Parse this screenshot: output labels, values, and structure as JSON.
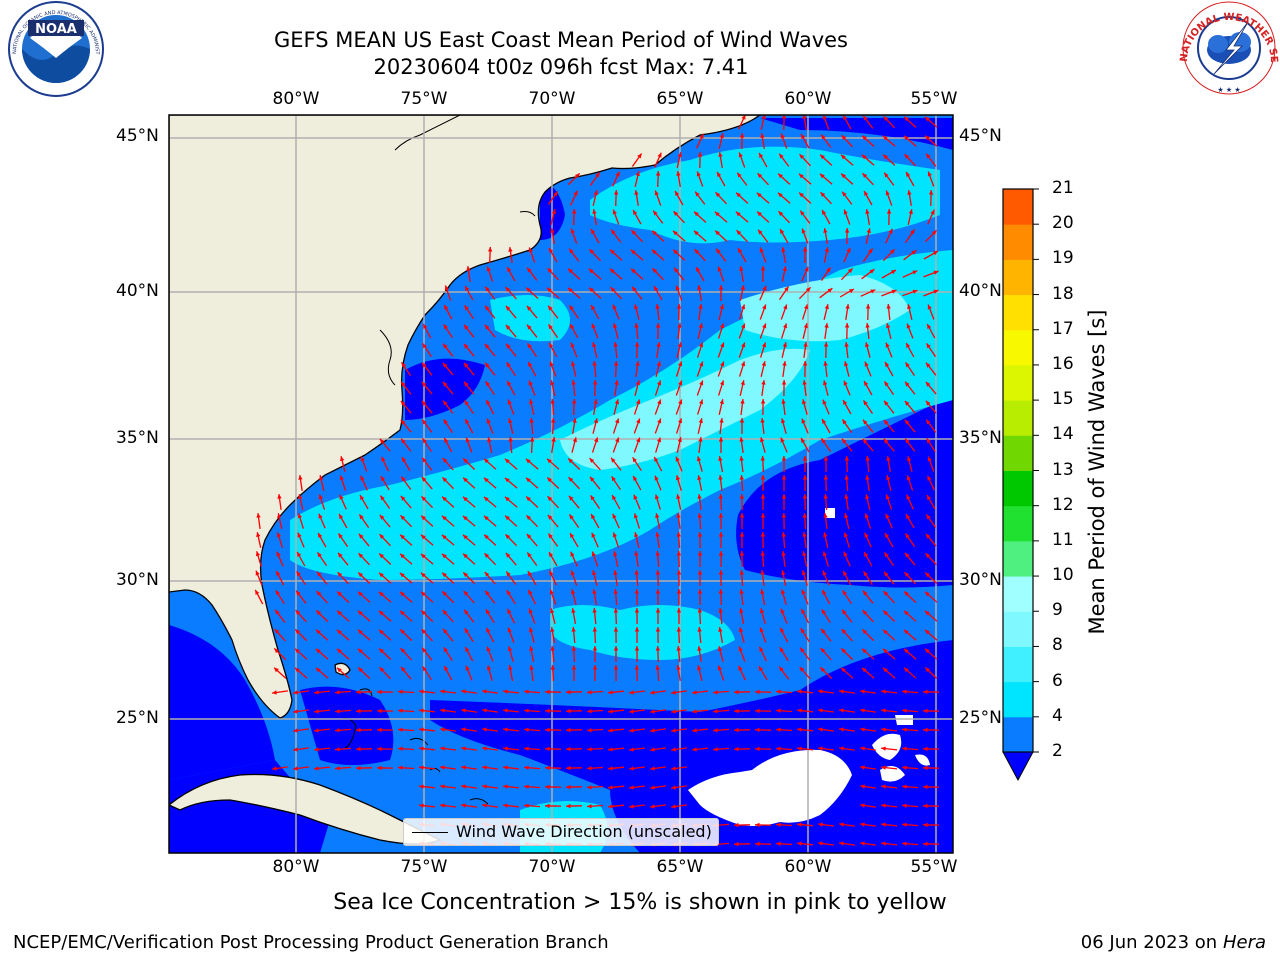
{
  "header": {
    "title_line1": "GEFS MEAN US East Coast Mean Period of Wind Waves",
    "title_line2": "20230604 t00z 096h fcst   Max: 7.41"
  },
  "logos": {
    "left": {
      "name": "NOAA",
      "ring_text": "NATIONAL OCEANIC AND ATMOSPHERIC ADMINISTRATION · U.S. DEPARTMENT OF COMMERCE"
    },
    "right": {
      "ring_text": "NATIONAL WEATHER SERVICE"
    }
  },
  "map": {
    "lon_labels": [
      "80°W",
      "75°W",
      "70°W",
      "65°W",
      "60°W",
      "55°W"
    ],
    "lat_labels": [
      "45°N",
      "40°N",
      "35°N",
      "30°N",
      "25°N"
    ],
    "colors": {
      "land": "#efeddc",
      "grid": "#b0b0b0",
      "arrow": "#ff0000",
      "ice_gap": "#ffffff"
    },
    "legend_label": "Wind Wave Direction (unscaled)"
  },
  "colorbar": {
    "label": "Mean Period of Wind Waves [s]",
    "ticks": [
      "2",
      "4",
      "6",
      "8",
      "9",
      "10",
      "11",
      "12",
      "13",
      "14",
      "15",
      "16",
      "17",
      "18",
      "19",
      "20",
      "21"
    ],
    "colors": [
      "#0a7cff",
      "#00e5ff",
      "#40f0ff",
      "#80f8ff",
      "#a0ffff",
      "#50f080",
      "#20e030",
      "#00c800",
      "#70d800",
      "#b8ec00",
      "#dcf500",
      "#f8f800",
      "#ffe000",
      "#ffb400",
      "#ff8c00",
      "#ff5a00",
      "#ff2a00",
      "#ff0000"
    ],
    "extend_color": "#0000ff"
  },
  "chart_data": {
    "type": "heatmap",
    "title": "GEFS MEAN US East Coast Mean Period of Wind Waves",
    "subtitle": "20230604 t00z 096h fcst   Max: 7.41",
    "colorbar_label": "Mean Period of Wind Waves [s]",
    "x_ticks": [
      "80°W",
      "75°W",
      "70°W",
      "65°W",
      "60°W",
      "55°W"
    ],
    "y_ticks": [
      "45°N",
      "40°N",
      "35°N",
      "30°N",
      "25°N"
    ],
    "colorbar_range": [
      2,
      21
    ],
    "max": 7.41,
    "grid": true
  },
  "notes": {
    "sea_ice": "Sea Ice Concentration > 15% is shown in pink to yellow"
  },
  "footer": {
    "left": "NCEP/EMC/Verification Post Processing Product Generation Branch",
    "date": "06 Jun 2023 on",
    "machine": "Hera"
  }
}
